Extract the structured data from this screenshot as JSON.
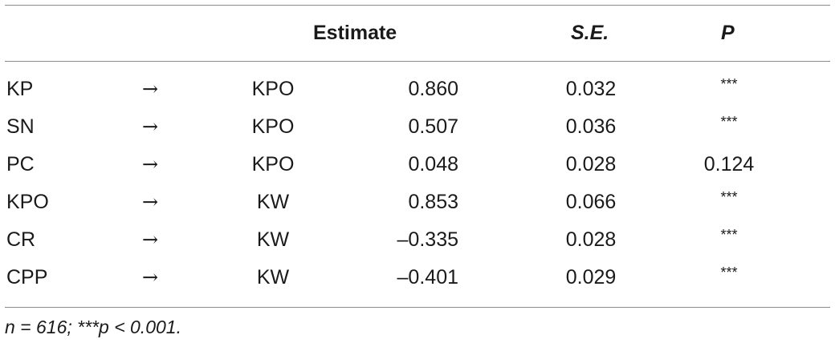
{
  "table": {
    "headers": {
      "estimate": "Estimate",
      "se": "S.E.",
      "p": "P"
    },
    "arrow": "→",
    "rows": [
      {
        "from": "KP",
        "to": "KPO",
        "estimate": "0.860",
        "se": "0.032",
        "p": "***"
      },
      {
        "from": "SN",
        "to": "KPO",
        "estimate": "0.507",
        "se": "0.036",
        "p": "***"
      },
      {
        "from": "PC",
        "to": "KPO",
        "estimate": "0.048",
        "se": "0.028",
        "p": "0.124"
      },
      {
        "from": "KPO",
        "to": "KW",
        "estimate": "0.853",
        "se": "0.066",
        "p": "***"
      },
      {
        "from": "CR",
        "to": "KW",
        "estimate": "–0.335",
        "se": "0.028",
        "p": "***"
      },
      {
        "from": "CPP",
        "to": "KW",
        "estimate": "–0.401",
        "se": "0.029",
        "p": "***"
      }
    ],
    "footnote": "n = 616; ***p < 0.001."
  }
}
